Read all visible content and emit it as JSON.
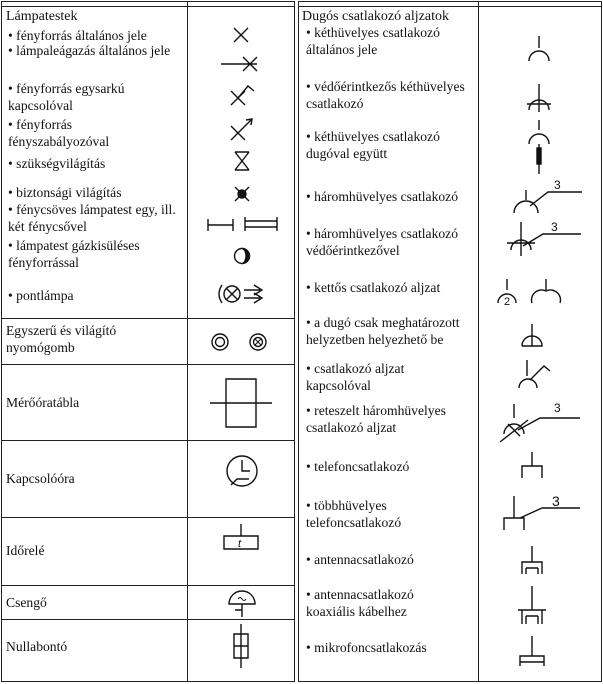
{
  "left": {
    "heading": "Lámpatestek",
    "items": [
      {
        "label": "fényforrás általános jele",
        "icon": "cross-lamp-icon"
      },
      {
        "label": "lámpaleágazás általános jele",
        "icon": "lamp-branch-icon"
      },
      {
        "label": "fényforrás egysarkú kapcsolóval",
        "icon": "lamp-switch-icon"
      },
      {
        "label": "fényforrás fényszabályozóval",
        "icon": "lamp-dimmer-icon"
      },
      {
        "label": "szükségvilágítás",
        "icon": "emergency-light-icon"
      },
      {
        "label": "biztonsági világítás",
        "icon": "safety-light-icon"
      },
      {
        "label": "fénycsöves lámpatest egy, ill. két fénycsővel",
        "icon": "fluorescent-lamp-icon"
      },
      {
        "label": "lámpatest gázkisüléses fényforrással",
        "icon": "gas-discharge-lamp-icon"
      },
      {
        "label": "pontlámpa",
        "icon": "spotlight-icon"
      }
    ],
    "rows": [
      {
        "label": "Egyszerű és világító nyomógomb",
        "icon": "push-button-icon"
      },
      {
        "label": "Mérőóratábla",
        "icon": "meter-board-icon"
      },
      {
        "label": "Kapcsolóóra",
        "icon": "time-switch-icon"
      },
      {
        "label": "Időrelé",
        "icon": "time-relay-icon",
        "symbol_text": "t"
      },
      {
        "label": "Csengő",
        "icon": "bell-icon"
      },
      {
        "label": "Nullabontó",
        "icon": "neutral-disconnector-icon"
      }
    ]
  },
  "right": {
    "heading": "Dugós csatlakozó aljzatok",
    "items": [
      {
        "label": "kéthüvelyes csatlakozó általános jele",
        "icon": "two-pin-socket-icon"
      },
      {
        "label": "védőérintkezős kéthüvelyes csatlakozó",
        "icon": "earthed-socket-icon"
      },
      {
        "label": "kéthüvelyes csatlakozó dugóval együtt",
        "icon": "socket-with-plug-icon"
      },
      {
        "label": "háromhüvelyes csatlakozó",
        "icon": "three-pin-socket-icon",
        "number": "3"
      },
      {
        "label": "háromhüvelyes csatlakozó védőérintkezővel",
        "icon": "three-pin-earthed-socket-icon",
        "number": "3"
      },
      {
        "label": "kettős csatlakozó aljzat",
        "icon": "double-socket-icon",
        "number": "2"
      },
      {
        "label": "a dugó csak meghatározott helyzetben helyezhető be",
        "icon": "polarized-socket-icon"
      },
      {
        "label": "csatlakozó aljzat kapcsolóval",
        "icon": "switched-socket-icon"
      },
      {
        "label": "reteszelt háromhüvelyes csatlakozó aljzat",
        "icon": "interlocked-socket-icon",
        "number": "3"
      },
      {
        "label": "telefoncsatlakozó",
        "icon": "telephone-socket-icon"
      },
      {
        "label": "többhüvelyes telefoncsatlakozó",
        "icon": "multi-pin-telephone-socket-icon",
        "number": "3"
      },
      {
        "label": "antennacsatlakozó",
        "icon": "antenna-socket-icon"
      },
      {
        "label": "antennacsatlakozó koaxiális kábelhez",
        "icon": "coax-antenna-socket-icon"
      },
      {
        "label": "mikrofoncsatlakozás",
        "icon": "microphone-socket-icon"
      }
    ]
  }
}
